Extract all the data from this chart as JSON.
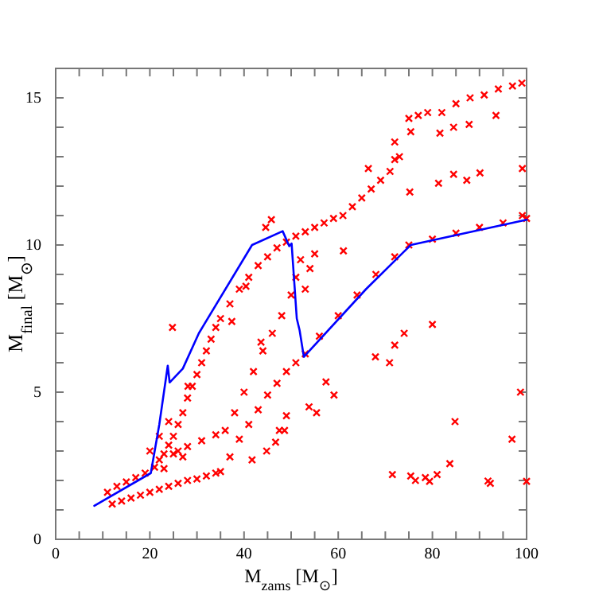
{
  "chart_data": {
    "type": "scatter",
    "xlabel": "M$_{zams}$ [M$_{⊙}$]",
    "ylabel": "M$_{final}$ [M$_{⊙}$]",
    "xlim": [
      0,
      100
    ],
    "ylim": [
      0,
      16
    ],
    "xticks": [
      0,
      {
        "value": 5,
        "label": null
      },
      {
        "value": 10,
        "label": null
      },
      {
        "value": 15,
        "label": null
      },
      20,
      {
        "value": 25,
        "label": null
      },
      {
        "value": 30,
        "label": null
      },
      {
        "value": 35,
        "label": null
      },
      40,
      {
        "value": 45,
        "label": null
      },
      {
        "value": 50,
        "label": null
      },
      {
        "value": 55,
        "label": null
      },
      60,
      {
        "value": 65,
        "label": null
      },
      {
        "value": 70,
        "label": null
      },
      {
        "value": 75,
        "label": null
      },
      80,
      {
        "value": 85,
        "label": null
      },
      {
        "value": 90,
        "label": null
      },
      {
        "value": 95,
        "label": null
      },
      100
    ],
    "yticks": [
      0,
      {
        "value": 1,
        "label": null
      },
      {
        "value": 2,
        "label": null
      },
      {
        "value": 3,
        "label": null
      },
      {
        "value": 4,
        "label": null
      },
      5,
      {
        "value": 6,
        "label": null
      },
      {
        "value": 7,
        "label": null
      },
      {
        "value": 8,
        "label": null
      },
      {
        "value": 9,
        "label": null
      },
      10,
      {
        "value": 11,
        "label": null
      },
      {
        "value": 12,
        "label": null
      },
      {
        "value": 13,
        "label": null
      },
      {
        "value": 14,
        "label": null
      },
      15,
      {
        "value": 16,
        "label": null
      }
    ],
    "marker": "cross",
    "series": [
      {
        "color": "#ff0000",
        "x": [
          12,
          14,
          16,
          18,
          20,
          22,
          24,
          26,
          28,
          30,
          32,
          34,
          35,
          37,
          39,
          41,
          43,
          45,
          47,
          49,
          51,
          53,
          56,
          60,
          64,
          68,
          72,
          75,
          80,
          85,
          90,
          95,
          100,
          25,
          28,
          31,
          34,
          36,
          38,
          40,
          42,
          44,
          46,
          48,
          50,
          51,
          52,
          53,
          54,
          55,
          11,
          13,
          15,
          17,
          19,
          21,
          22,
          23,
          24,
          25,
          26,
          27,
          28,
          29,
          30,
          31,
          32,
          33,
          34,
          35,
          37,
          39,
          41,
          43,
          45,
          47,
          49,
          51,
          53,
          55,
          57,
          59,
          61,
          63,
          65,
          67,
          69,
          71,
          73,
          75,
          77,
          79,
          82,
          85,
          88,
          91,
          94,
          97,
          99,
          20,
          22,
          24,
          26,
          27,
          23,
          72,
          75.4,
          81.6,
          84.5,
          87.8,
          93.5,
          90.1,
          87.3,
          81.3,
          84.5,
          99.1,
          99.1,
          66.4,
          72,
          75.2,
          61.1,
          67.9,
          70.9,
          72,
          74,
          80,
          57.4,
          59.1,
          53.8,
          55.4,
          71.5,
          75.4,
          76.4,
          78.5,
          79.4,
          81,
          83.7,
          84.8,
          91.8,
          92.3,
          96.9,
          98.7,
          100,
          24.8,
          28.1,
          37.4,
          43.6,
          49,
          48.6,
          47.5,
          46.7,
          44.8,
          41.7,
          45.8,
          44.6,
          40.4
        ],
        "values": [
          1.2,
          1.3,
          1.4,
          1.5,
          1.6,
          1.7,
          1.8,
          1.9,
          2.0,
          2.05,
          2.15,
          2.25,
          2.3,
          2.8,
          3.4,
          3.9,
          4.4,
          4.9,
          5.3,
          5.7,
          6.0,
          6.3,
          6.9,
          7.6,
          8.3,
          9.0,
          9.6,
          10.0,
          10.2,
          10.4,
          10.6,
          10.75,
          10.9,
          2.9,
          3.15,
          3.35,
          3.55,
          3.7,
          4.3,
          5.0,
          5.7,
          6.4,
          7.0,
          7.6,
          8.3,
          8.9,
          9.5,
          8.5,
          9.2,
          9.7,
          1.6,
          1.8,
          1.95,
          2.1,
          2.25,
          2.45,
          2.7,
          2.9,
          3.2,
          3.5,
          3.9,
          4.3,
          4.8,
          5.2,
          5.6,
          6.0,
          6.4,
          6.8,
          7.2,
          7.5,
          8.0,
          8.5,
          8.9,
          9.3,
          9.6,
          9.9,
          10.1,
          10.3,
          10.45,
          10.6,
          10.75,
          10.9,
          11.0,
          11.3,
          11.6,
          11.9,
          12.2,
          12.5,
          13.0,
          14.3,
          14.4,
          14.5,
          14.5,
          14.8,
          15.0,
          15.1,
          15.3,
          15.4,
          15.5,
          3.0,
          3.5,
          4.0,
          3.0,
          2.8,
          2.4,
          13.5,
          13.85,
          13.8,
          14.0,
          14.1,
          14.4,
          12.45,
          12.2,
          12.1,
          12.4,
          12.6,
          11.0,
          12.6,
          12.9,
          11.8,
          9.8,
          6.2,
          6.0,
          6.6,
          7.0,
          7.3,
          5.35,
          4.9,
          4.5,
          4.3,
          2.2,
          2.15,
          2.0,
          2.1,
          1.97,
          2.2,
          2.57,
          4.0,
          1.98,
          1.9,
          3.4,
          5.0,
          1.97,
          7.2,
          5.2,
          7.4,
          6.7,
          4.2,
          3.7,
          3.7,
          3.3,
          3.0,
          2.7,
          10.86,
          10.6,
          8.6
        ]
      },
      {
        "type": "line",
        "marker": "none",
        "color": "#0000ff",
        "x": [
          8.2,
          20.2,
          22,
          23.8,
          24.2,
          27,
          30.4,
          41.7,
          48.2,
          49.6,
          50.1,
          51.2,
          51.8,
          52.7,
          65.9,
          75.4,
          100
        ],
        "values": [
          1.14,
          2.25,
          3.9,
          5.9,
          5.33,
          5.8,
          7.0,
          10.0,
          10.47,
          9.96,
          10.05,
          7.5,
          7.1,
          6.2,
          8.5,
          10.0,
          10.86
        ]
      }
    ]
  }
}
